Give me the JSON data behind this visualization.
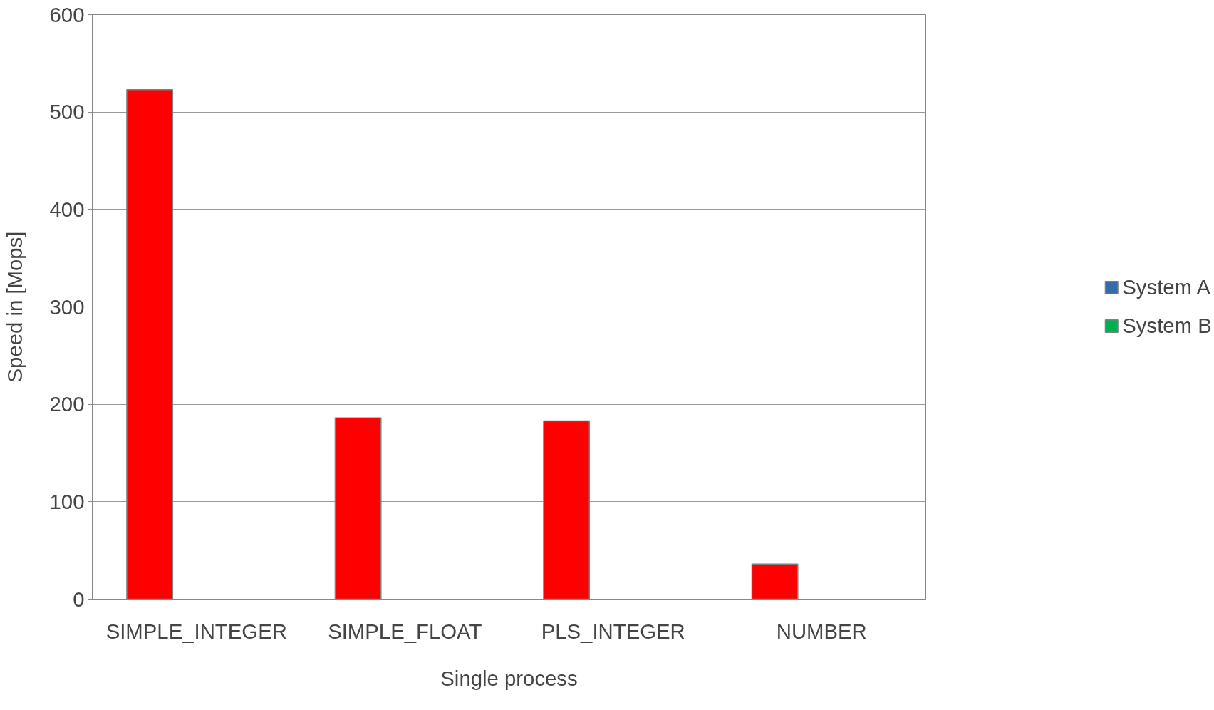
{
  "chart_data": {
    "type": "bar",
    "xlabel": "Single process",
    "ylabel": "Speed in [Mops]",
    "categories": [
      "SIMPLE_INTEGER",
      "SIMPLE_FLOAT",
      "PLS_INTEGER",
      "NUMBER"
    ],
    "series": [
      {
        "color": "#ff0000",
        "values": [
          523,
          186,
          183,
          36
        ]
      },
      {
        "name": "System A",
        "color": "#356ba6",
        "values": [
          null,
          null,
          null,
          null
        ]
      },
      {
        "name": "System B",
        "color": "#00b050",
        "values": [
          null,
          null,
          null,
          null
        ]
      }
    ],
    "ylim": [
      0,
      600
    ],
    "yticks": [
      0,
      100,
      200,
      300,
      400,
      500,
      600
    ],
    "grid": "y",
    "legend": "right"
  }
}
